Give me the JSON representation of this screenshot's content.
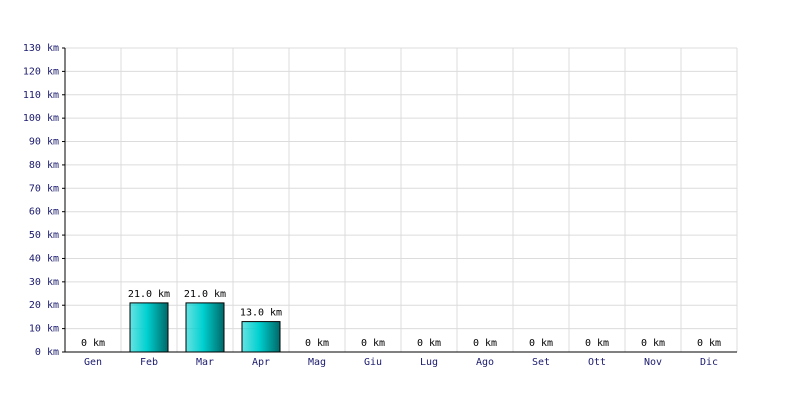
{
  "chart_data": {
    "type": "bar",
    "categories": [
      "Gen",
      "Feb",
      "Mar",
      "Apr",
      "Mag",
      "Giu",
      "Lug",
      "Ago",
      "Set",
      "Ott",
      "Nov",
      "Dic"
    ],
    "values": [
      0,
      21,
      21,
      13,
      0,
      0,
      0,
      0,
      0,
      0,
      0,
      0
    ],
    "value_labels": [
      "0 km",
      "21.0 km",
      "21.0 km",
      "13.0 km",
      "0 km",
      "0 km",
      "0 km",
      "0 km",
      "0 km",
      "0 km",
      "0 km",
      "0 km"
    ],
    "color": "#00d0d0",
    "ylim": [
      0,
      130
    ],
    "yticks": [
      {
        "value": 0,
        "label": "0 km"
      },
      {
        "value": 10,
        "label": "10 km"
      },
      {
        "value": 20,
        "label": "20 km"
      },
      {
        "value": 30,
        "label": "30 km"
      },
      {
        "value": 40,
        "label": "40 km"
      },
      {
        "value": 50,
        "label": "50 km"
      },
      {
        "value": 60,
        "label": "60 km"
      },
      {
        "value": 70,
        "label": "70 km"
      },
      {
        "value": 80,
        "label": "80 km"
      },
      {
        "value": 90,
        "label": "90 km"
      },
      {
        "value": 100,
        "label": "100 km"
      },
      {
        "value": 110,
        "label": "110 km"
      },
      {
        "value": 120,
        "label": "120 km"
      },
      {
        "value": 130,
        "label": "130 km"
      }
    ],
    "grid": true
  }
}
